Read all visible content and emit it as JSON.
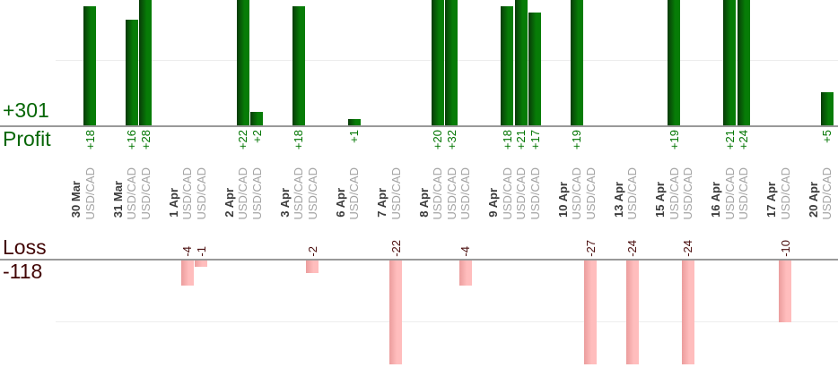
{
  "chart_data": {
    "type": "bar",
    "title": "",
    "description": "Daily trade results split into a Profit chart (green, above) and a Loss chart (pink, below), per USD/CAD trade",
    "profit_summary": {
      "value": "+301",
      "label": "Profit",
      "total": 301
    },
    "loss_summary": {
      "label": "Loss",
      "value": "-118",
      "total": -118
    },
    "profit_axis": {
      "baseline": 0,
      "gridline_value": 10,
      "visible_max": 19,
      "bars_clipped_at_top": true,
      "grid": "single light line"
    },
    "loss_axis": {
      "baseline": 0,
      "gridline_value": -10,
      "visible_min": -17,
      "bars_clipped_at_bottom": true,
      "grid": "single light line"
    },
    "legend_position": "none",
    "groups": [
      {
        "date": "30 Mar",
        "trades": [
          {
            "instrument": "USD/CAD",
            "value": 18,
            "label": "+18"
          }
        ]
      },
      {
        "date": "31 Mar",
        "trades": [
          {
            "instrument": "USD/CAD",
            "value": 16,
            "label": "+16"
          },
          {
            "instrument": "USD/CAD",
            "value": 28,
            "label": "+28"
          }
        ]
      },
      {
        "date": "1 Apr",
        "trades": [
          {
            "instrument": "USD/CAD",
            "value": -4,
            "label": "-4"
          },
          {
            "instrument": "USD/CAD",
            "value": -1,
            "label": "-1"
          }
        ]
      },
      {
        "date": "2 Apr",
        "trades": [
          {
            "instrument": "USD/CAD",
            "value": 22,
            "label": "+22"
          },
          {
            "instrument": "USD/CAD",
            "value": 2,
            "label": "+2"
          }
        ]
      },
      {
        "date": "3 Apr",
        "trades": [
          {
            "instrument": "USD/CAD",
            "value": 18,
            "label": "+18"
          },
          {
            "instrument": "USD/CAD",
            "value": -2,
            "label": "-2"
          }
        ]
      },
      {
        "date": "6 Apr",
        "trades": [
          {
            "instrument": "USD/CAD",
            "value": 1,
            "label": "+1"
          }
        ]
      },
      {
        "date": "7 Apr",
        "trades": [
          {
            "instrument": "USD/CAD",
            "value": -22,
            "label": "-22"
          }
        ]
      },
      {
        "date": "8 Apr",
        "trades": [
          {
            "instrument": "USD/CAD",
            "value": 20,
            "label": "+20"
          },
          {
            "instrument": "USD/CAD",
            "value": 32,
            "label": "+32"
          },
          {
            "instrument": "USD/CAD",
            "value": -4,
            "label": "-4"
          }
        ]
      },
      {
        "date": "9 Apr",
        "trades": [
          {
            "instrument": "USD/CAD",
            "value": 18,
            "label": "+18"
          },
          {
            "instrument": "USD/CAD",
            "value": 21,
            "label": "+21"
          },
          {
            "instrument": "USD/CAD",
            "value": 17,
            "label": "+17"
          }
        ]
      },
      {
        "date": "10 Apr",
        "trades": [
          {
            "instrument": "USD/CAD",
            "value": 19,
            "label": "+19"
          },
          {
            "instrument": "USD/CAD",
            "value": -27,
            "label": "-27"
          }
        ]
      },
      {
        "date": "13 Apr",
        "trades": [
          {
            "instrument": "USD/CAD",
            "value": -24,
            "label": "-24"
          }
        ]
      },
      {
        "date": "15 Apr",
        "trades": [
          {
            "instrument": "USD/CAD",
            "value": 19,
            "label": "+19"
          },
          {
            "instrument": "USD/CAD",
            "value": -24,
            "label": "-24"
          }
        ]
      },
      {
        "date": "16 Apr",
        "trades": [
          {
            "instrument": "USD/CAD",
            "value": 21,
            "label": "+21"
          },
          {
            "instrument": "USD/CAD",
            "value": 24,
            "label": "+24"
          }
        ]
      },
      {
        "date": "17 Apr",
        "trades": [
          {
            "instrument": "USD/CAD",
            "value": -10,
            "label": "-10"
          }
        ]
      },
      {
        "date": "20 Apr",
        "trades": [
          {
            "instrument": "USD/CAD",
            "value": 5,
            "label": "+5"
          }
        ]
      }
    ],
    "colors": {
      "profit_bar_dark": "#083a08",
      "profit_bar_light": "#077c07",
      "loss_bar_dark": "#eb9d9d",
      "loss_bar_light": "#ffbdbd",
      "profit_text": "#007500",
      "loss_text": "#4b0f0f",
      "profit_summary_text": "#066606",
      "loss_summary_text": "#420606",
      "date_text": "#3c3c3c",
      "instrument_text": "#a3a3a3",
      "axis_line": "#999999",
      "gridline": "#ededed"
    }
  }
}
